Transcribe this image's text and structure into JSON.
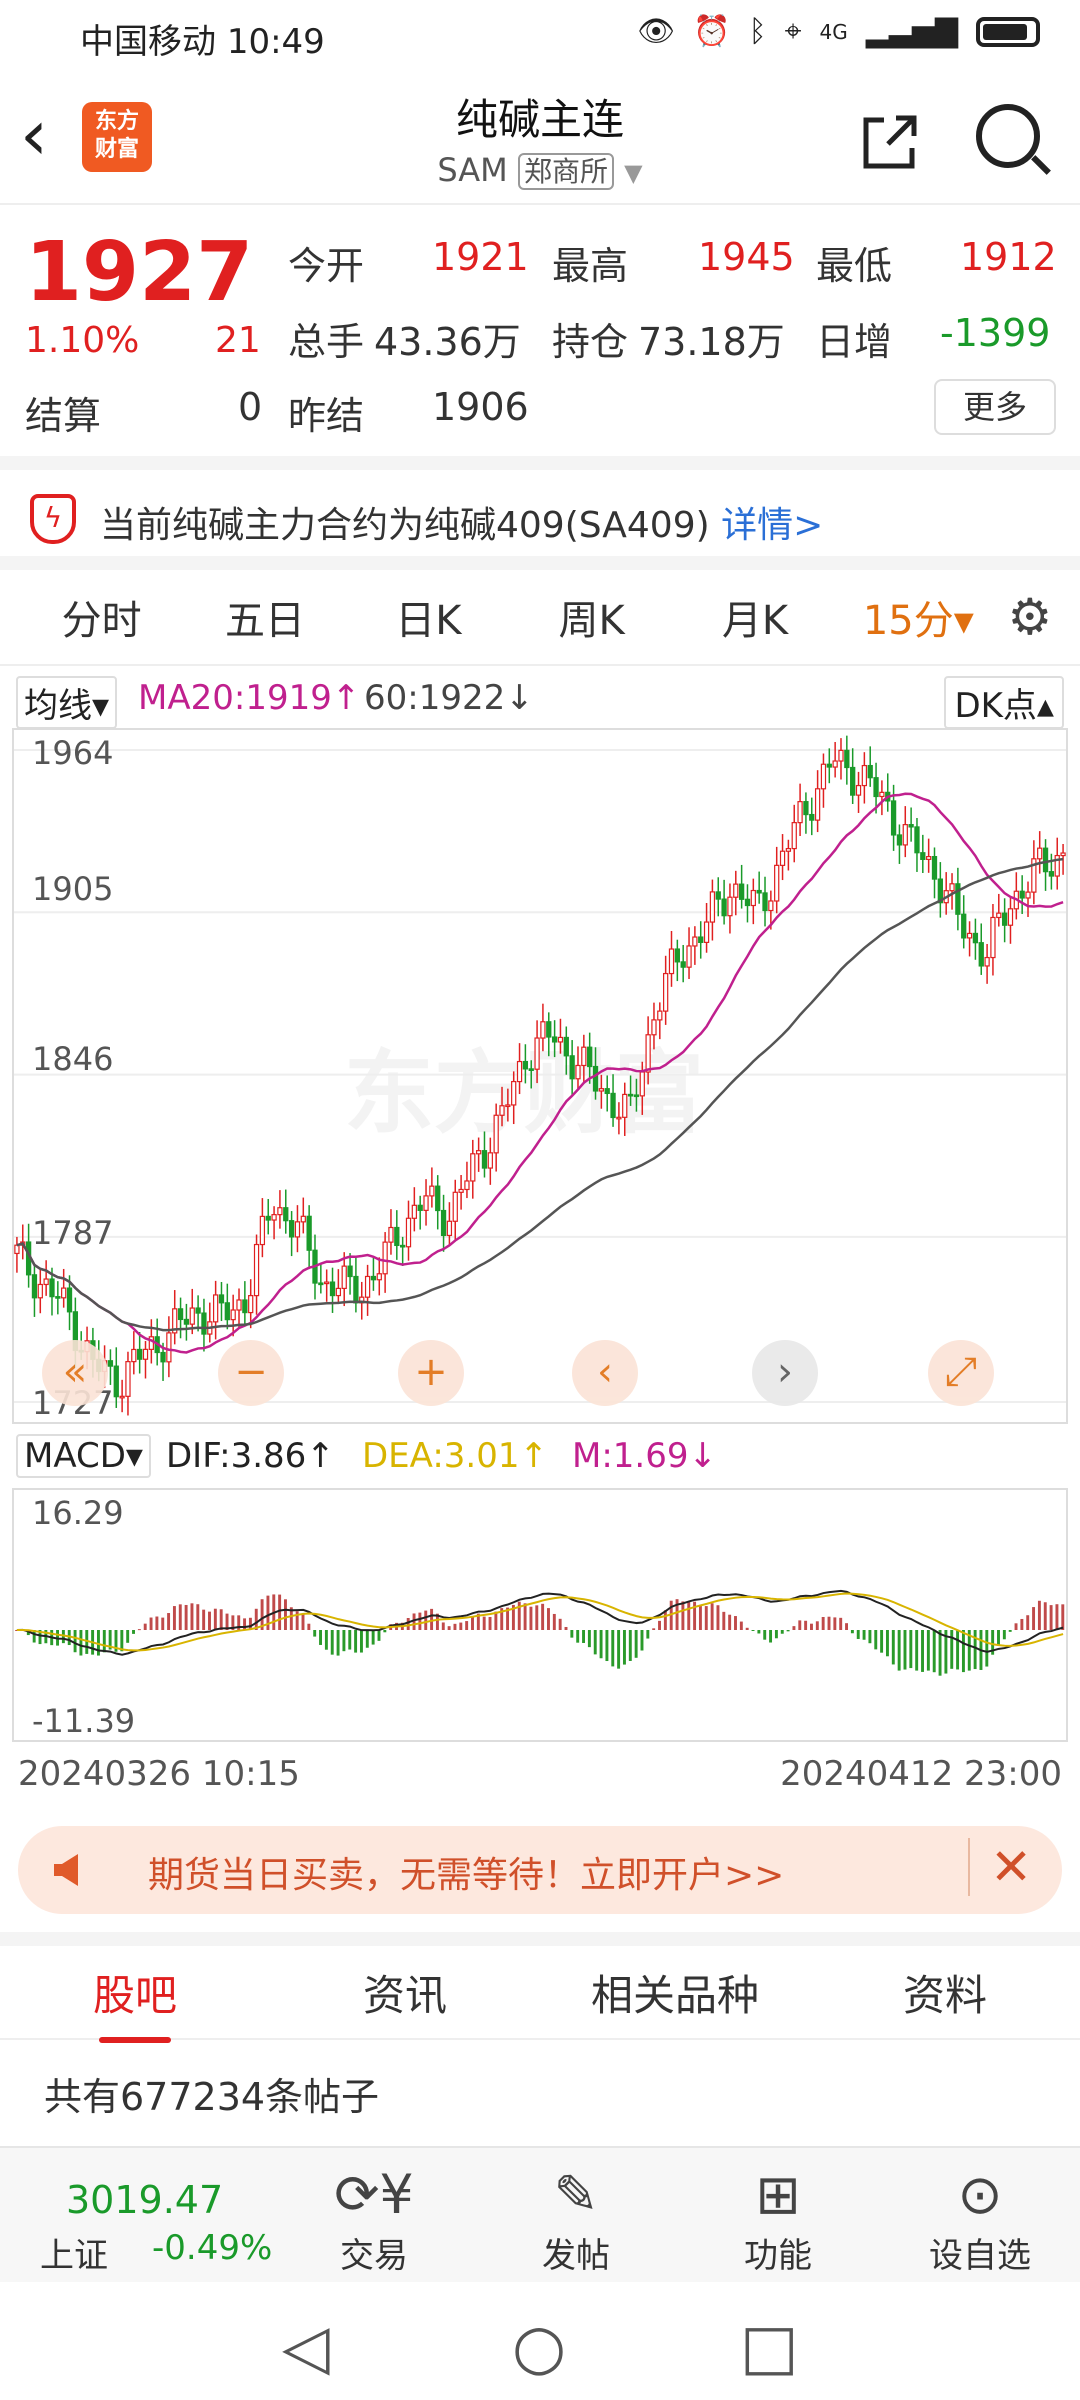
{
  "status": {
    "carrier": "中国移动",
    "time": "10:49",
    "net": "4G"
  },
  "header": {
    "logo_line1": "东方",
    "logo_line2": "财富",
    "title": "纯碱主连",
    "code": "SAM",
    "exchange": "郑商所"
  },
  "quote": {
    "price": "1927",
    "pct": "1.10%",
    "chg": "21",
    "open_label": "今开",
    "open": "1921",
    "high_label": "最高",
    "high": "1945",
    "low_label": "最低",
    "low": "1912",
    "vol_label": "总手",
    "vol": "43.36万",
    "oi_label": "持仓",
    "oi": "73.18万",
    "oi_chg_label": "日增",
    "oi_chg": "-1399",
    "settle_label": "结算",
    "settle": "0",
    "prev_settle_label": "昨结",
    "prev_settle": "1906",
    "more_label": "更多"
  },
  "notice": {
    "text": "当前纯碱主力合约为纯碱409(SA409)",
    "link": "详情>"
  },
  "period_tabs": [
    "分时",
    "五日",
    "日K",
    "周K",
    "月K",
    "15分▾"
  ],
  "ma": {
    "selector": "均线▾",
    "ma20": "MA20:1919↑",
    "ma60": "60:1922↓",
    "dk": "DK点▴"
  },
  "kchart": {
    "y_ticks": [
      "1964",
      "1905",
      "1846",
      "1787",
      "1727"
    ],
    "watermark": "东方财富"
  },
  "macd": {
    "selector": "MACD▾",
    "dif": "DIF:3.86↑",
    "dea": "DEA:3.01↑",
    "m": "M:1.69↓",
    "top": "16.29",
    "bottom": "-11.39"
  },
  "dates": {
    "start": "20240326 10:15",
    "end": "20240412 23:00"
  },
  "banner": {
    "text": "期货当日买卖，无需等待！立即开户>>"
  },
  "sub_tabs": [
    "股吧",
    "资讯",
    "相关品种",
    "资料"
  ],
  "posts": "共有677234条帖子",
  "index": {
    "value": "3019.47",
    "name": "上证",
    "chg": "-0.49%"
  },
  "nav": [
    "交易",
    "发帖",
    "功能",
    "设自选"
  ],
  "chart_data": {
    "type": "candlestick",
    "title": "纯碱主连 15分",
    "x_range": [
      "20240326 10:15",
      "20240412 23:00"
    ],
    "ylim": [
      1727,
      1964
    ],
    "y_ticks": [
      1964,
      1905,
      1846,
      1787,
      1727
    ],
    "series": [
      {
        "name": "MA20",
        "latest": 1919
      },
      {
        "name": "MA60",
        "latest": 1922
      }
    ],
    "approx_close_path": [
      1780,
      1770,
      1760,
      1740,
      1735,
      1745,
      1752,
      1760,
      1758,
      1765,
      1800,
      1790,
      1770,
      1768,
      1772,
      1790,
      1800,
      1795,
      1815,
      1830,
      1855,
      1860,
      1850,
      1840,
      1830,
      1870,
      1890,
      1900,
      1915,
      1905,
      1925,
      1945,
      1960,
      1955,
      1945,
      1930,
      1920,
      1900,
      1890,
      1910,
      1920,
      1927
    ]
  }
}
